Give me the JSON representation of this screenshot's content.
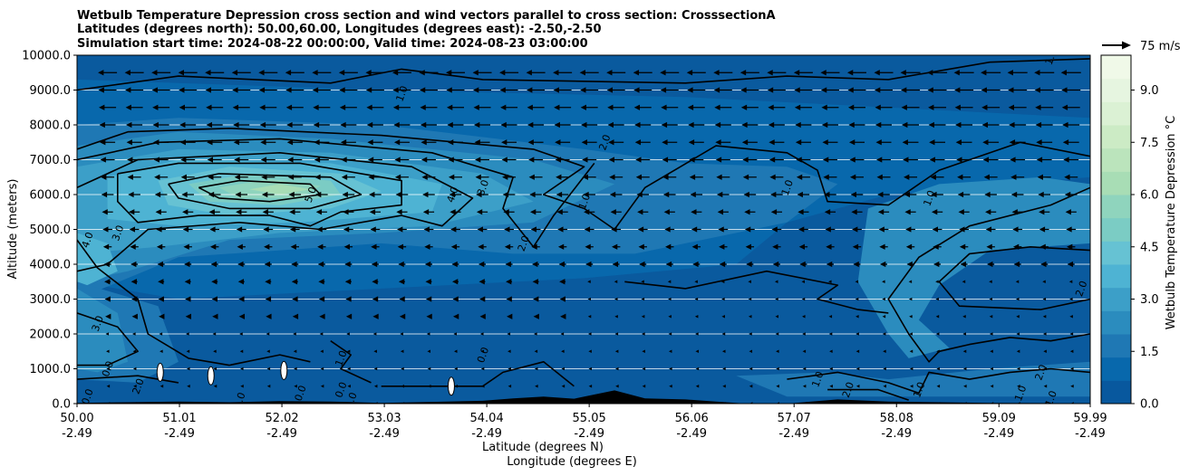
{
  "chart_data": {
    "type": "heatmap",
    "title_lines": [
      "Wetbulb Temperature Depression cross section and wind vectors parallel to cross section: CrosssectionA",
      "Latitudes (degrees north): 50.00,60.00, Longitudes (degrees east): -2.50,-2.50",
      "Simulation start time: 2024-08-22 00:00:00, Valid time: 2024-08-23 03:00:00"
    ],
    "ylabel": "Altitude (meters)",
    "xlabel_lat": "Latitude (degrees N)",
    "xlabel_lon": "Longitude (degrees E)",
    "ylim": [
      0,
      10000
    ],
    "y_ticks": [
      0,
      1000,
      2000,
      3000,
      4000,
      5000,
      6000,
      7000,
      8000,
      9000,
      10000
    ],
    "y_tick_labels": [
      "0.0",
      "1000.0",
      "2000.0",
      "3000.0",
      "4000.0",
      "5000.0",
      "6000.0",
      "7000.0",
      "8000.0",
      "9000.0",
      "10000.0"
    ],
    "xlim": [
      50.0,
      59.99
    ],
    "x_ticks": [
      50.0,
      51.01,
      52.02,
      53.03,
      54.04,
      55.05,
      56.06,
      57.07,
      58.08,
      59.09,
      59.99
    ],
    "x_tick_lat": [
      "50.00",
      "51.01",
      "52.02",
      "53.03",
      "54.04",
      "55.05",
      "56.06",
      "57.07",
      "58.08",
      "59.09",
      "59.99"
    ],
    "x_tick_lon": [
      "-2.49",
      "-2.49",
      "-2.49",
      "-2.49",
      "-2.49",
      "-2.49",
      "-2.49",
      "-2.49",
      "-2.49",
      "-2.49",
      "-2.49"
    ],
    "grid": "horizontal",
    "colorbar": {
      "label": "Wetbulb Temperature Depression °C",
      "range": [
        0,
        10
      ],
      "ticks": [
        0,
        1.5,
        3.0,
        4.5,
        6.0,
        7.5,
        9.0
      ],
      "tick_labels": [
        "0.0",
        "1.5",
        "3.0",
        "4.5",
        "6.0",
        "7.5",
        "9.0"
      ],
      "colors": [
        "#08589e",
        "#0868ac",
        "#1f78b4",
        "#2b8cbe",
        "#3c9fc8",
        "#4eb3d3",
        "#66c2d3",
        "#7bccc4",
        "#8fd4bd",
        "#a8ddb5",
        "#bbe4bc",
        "#ccebc5",
        "#dbf1d4",
        "#e6f5e0",
        "#f0f9e8"
      ]
    },
    "vector_key": {
      "label": "75 m/s",
      "value": 75
    },
    "wind": {
      "direction": "westward (toward decreasing latitude)",
      "speed_range_m_s": [
        0,
        40
      ]
    },
    "contour_labels": [
      {
        "text": "1.0",
        "lat": 53.2,
        "alt": 8900
      },
      {
        "text": "1.0",
        "lat": 59.6,
        "alt": 9950
      },
      {
        "text": "2.0",
        "lat": 55.2,
        "alt": 7500
      },
      {
        "text": "5.0",
        "lat": 52.3,
        "alt": 6000
      },
      {
        "text": "4.0",
        "lat": 53.7,
        "alt": 6000
      },
      {
        "text": "3.0",
        "lat": 54.0,
        "alt": 6200
      },
      {
        "text": "1.0",
        "lat": 55.0,
        "alt": 5800
      },
      {
        "text": "1.0",
        "lat": 57.0,
        "alt": 6200
      },
      {
        "text": "1.0",
        "lat": 58.4,
        "alt": 5900
      },
      {
        "text": "4.0",
        "lat": 50.1,
        "alt": 4700
      },
      {
        "text": "3.0",
        "lat": 50.4,
        "alt": 4900
      },
      {
        "text": "2.0",
        "lat": 54.4,
        "alt": 4600
      },
      {
        "text": "2.0",
        "lat": 59.9,
        "alt": 3300
      },
      {
        "text": "3.0",
        "lat": 50.2,
        "alt": 2300
      },
      {
        "text": "1.0",
        "lat": 52.6,
        "alt": 1300
      },
      {
        "text": "0.0",
        "lat": 54.0,
        "alt": 1400
      },
      {
        "text": "0.0",
        "lat": 50.3,
        "alt": 1000
      },
      {
        "text": "2.0",
        "lat": 50.6,
        "alt": 500
      },
      {
        "text": "0.0",
        "lat": 50.1,
        "alt": 200
      },
      {
        "text": "0.0",
        "lat": 52.2,
        "alt": 300
      },
      {
        "text": "0.0",
        "lat": 52.6,
        "alt": 400
      },
      {
        "text": "1.0",
        "lat": 52.7,
        "alt": 100
      },
      {
        "text": "1.0",
        "lat": 51.6,
        "alt": 100
      },
      {
        "text": "1.0",
        "lat": 57.3,
        "alt": 700
      },
      {
        "text": "2.0",
        "lat": 57.6,
        "alt": 400
      },
      {
        "text": "1.0",
        "lat": 58.3,
        "alt": 400
      },
      {
        "text": "2.0",
        "lat": 59.5,
        "alt": 900
      },
      {
        "text": "1.0",
        "lat": 59.3,
        "alt": 300
      },
      {
        "text": "1.0",
        "lat": 59.6,
        "alt": 150
      }
    ]
  }
}
